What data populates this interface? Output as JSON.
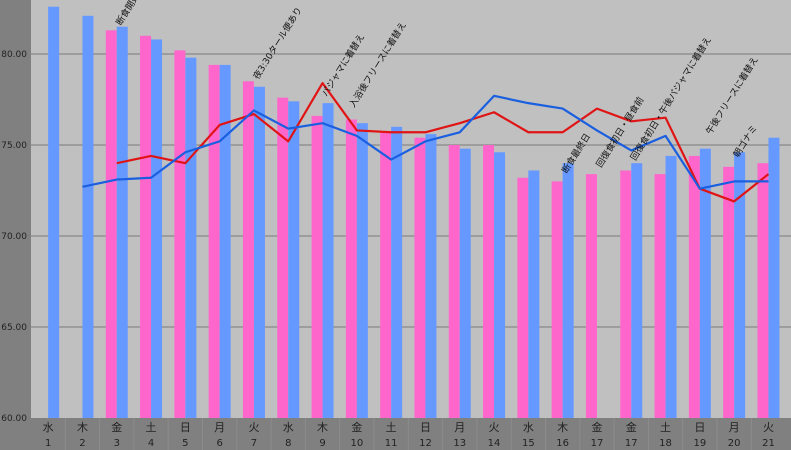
{
  "chart_data": {
    "type": "bar",
    "title": "",
    "xlabel": "",
    "ylabel": "",
    "ylim": [
      60,
      83
    ],
    "yticks": [
      "60.00",
      "65.00",
      "70.00",
      "75.00",
      "80.00"
    ],
    "grid": true,
    "legend": "none",
    "categories": [
      {
        "dow": "水",
        "day": "1"
      },
      {
        "dow": "木",
        "day": "2"
      },
      {
        "dow": "金",
        "day": "3"
      },
      {
        "dow": "土",
        "day": "4"
      },
      {
        "dow": "日",
        "day": "5"
      },
      {
        "dow": "月",
        "day": "6"
      },
      {
        "dow": "火",
        "day": "7"
      },
      {
        "dow": "水",
        "day": "8"
      },
      {
        "dow": "木",
        "day": "9"
      },
      {
        "dow": "金",
        "day": "10"
      },
      {
        "dow": "土",
        "day": "11"
      },
      {
        "dow": "日",
        "day": "12"
      },
      {
        "dow": "月",
        "day": "13"
      },
      {
        "dow": "火",
        "day": "14"
      },
      {
        "dow": "水",
        "day": "15"
      },
      {
        "dow": "木",
        "day": "16"
      },
      {
        "dow": "金",
        "day": "17"
      },
      {
        "dow": "金",
        "day": "17"
      },
      {
        "dow": "土",
        "day": "18"
      },
      {
        "dow": "日",
        "day": "19"
      },
      {
        "dow": "月",
        "day": "20"
      },
      {
        "dow": "火",
        "day": "21"
      }
    ],
    "series": [
      {
        "name": "pink-bars",
        "kind": "bar",
        "color": "#ff66cc",
        "values": [
          null,
          null,
          81.3,
          81.0,
          80.2,
          79.4,
          78.5,
          77.6,
          76.6,
          76.4,
          75.7,
          75.4,
          75.0,
          75.0,
          73.2,
          73.0,
          73.4,
          73.6,
          73.4,
          74.4,
          73.8,
          74.0
        ]
      },
      {
        "name": "blue-bars",
        "kind": "bar",
        "color": "#6699ff",
        "values": [
          82.6,
          82.1,
          81.5,
          80.8,
          79.8,
          79.4,
          78.2,
          77.4,
          77.3,
          76.2,
          76.0,
          75.6,
          74.8,
          74.6,
          73.6,
          74.0,
          null,
          74.0,
          74.4,
          74.8,
          74.6,
          75.4
        ]
      },
      {
        "name": "red-line",
        "kind": "line",
        "color": "#e01414",
        "values": [
          null,
          null,
          74.0,
          74.4,
          74.0,
          76.1,
          76.7,
          75.2,
          78.4,
          75.8,
          75.7,
          75.7,
          76.2,
          76.8,
          75.7,
          75.7,
          77.0,
          76.3,
          76.5,
          72.6,
          71.9,
          73.4
        ]
      },
      {
        "name": "blue-line",
        "kind": "line",
        "color": "#1a5fe0",
        "values": [
          null,
          72.7,
          73.1,
          73.2,
          74.6,
          75.2,
          76.9,
          75.9,
          76.2,
          75.5,
          74.2,
          75.2,
          75.7,
          77.7,
          77.3,
          77.0,
          75.8,
          74.7,
          75.5,
          72.6,
          73.0,
          73.0
        ]
      }
    ],
    "annotations": [
      {
        "index": 2,
        "text": "断食開始"
      },
      {
        "index": 6,
        "text": "夜3:30タール便あり"
      },
      {
        "index": 8,
        "text": "パジャマに着替え"
      },
      {
        "index": 8.8,
        "text": "入浴後フリースに着替え"
      },
      {
        "index": 15,
        "text": "断食最終日"
      },
      {
        "index": 16,
        "text": "回復食初日・昼食前"
      },
      {
        "index": 17,
        "text": "回復食初日・午後パジャマに着替え"
      },
      {
        "index": 19.2,
        "text": "午後フリースに着替え"
      },
      {
        "index": 20,
        "text": "朝ゴナミ"
      }
    ]
  }
}
